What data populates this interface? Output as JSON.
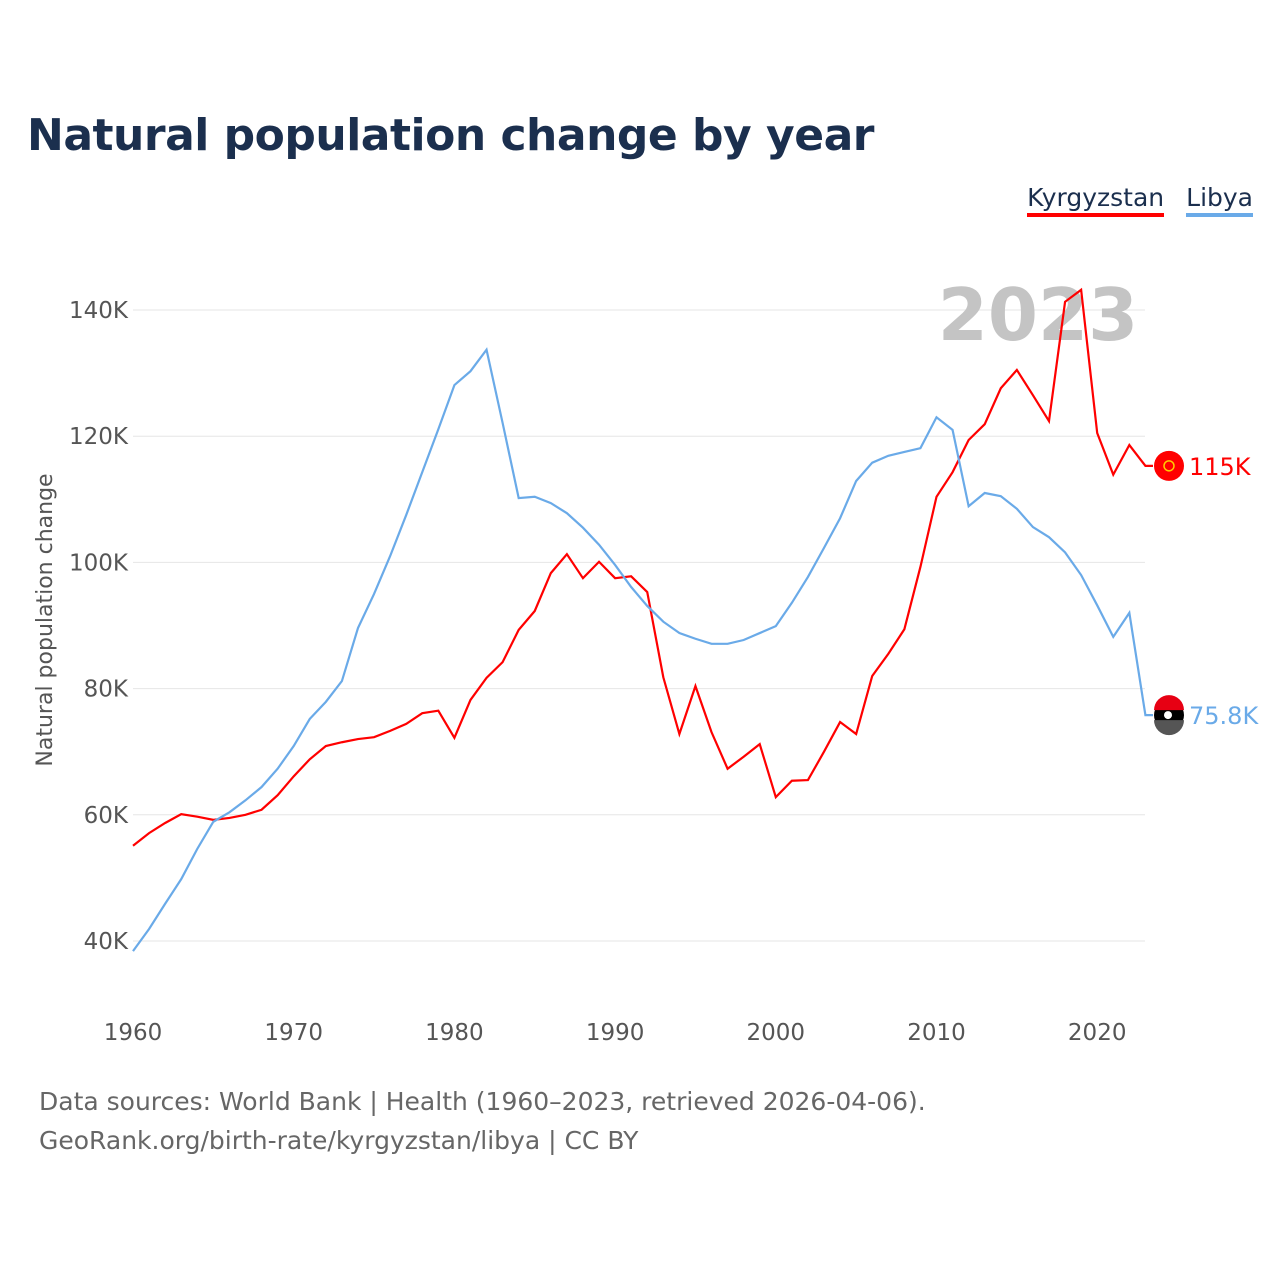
{
  "title": "Natural population change by year",
  "legend": [
    {
      "label": "Kyrgyzstan",
      "color": "#ff0000"
    },
    {
      "label": "Libya",
      "color": "#6aaae8"
    }
  ],
  "sources": [
    "Data sources: World Bank | Health (1960–2023, retrieved 2026-04-06).",
    "GeoRank.org/birth-rate/kyrgyzstan/libya | CC BY"
  ],
  "chart_data": {
    "type": "line",
    "title": "Natural population change by year",
    "xlabel": "",
    "ylabel": "Natural population change",
    "year_label": "2023",
    "xlim": [
      1960,
      2023
    ],
    "ylim": [
      30000,
      145000
    ],
    "x_ticks": [
      "1960",
      "1970",
      "1980",
      "1990",
      "2000",
      "2010",
      "2020"
    ],
    "y_ticks": [
      {
        "v": 40000,
        "label": "40K"
      },
      {
        "v": 60000,
        "label": "60K"
      },
      {
        "v": 80000,
        "label": "80K"
      },
      {
        "v": 100000,
        "label": "100K"
      },
      {
        "v": 120000,
        "label": "120K"
      },
      {
        "v": 140000,
        "label": "140K"
      }
    ],
    "x": [
      1960,
      1961,
      1962,
      1963,
      1964,
      1965,
      1966,
      1967,
      1968,
      1969,
      1970,
      1971,
      1972,
      1973,
      1974,
      1975,
      1976,
      1977,
      1978,
      1979,
      1980,
      1981,
      1982,
      1983,
      1984,
      1985,
      1986,
      1987,
      1988,
      1989,
      1990,
      1991,
      1992,
      1993,
      1994,
      1995,
      1996,
      1997,
      1998,
      1999,
      2000,
      2001,
      2002,
      2003,
      2004,
      2005,
      2006,
      2007,
      2008,
      2009,
      2010,
      2011,
      2012,
      2013,
      2014,
      2015,
      2016,
      2017,
      2018,
      2019,
      2020,
      2021,
      2022,
      2023
    ],
    "series": [
      {
        "name": "Kyrgyzstan",
        "color": "#ff0000",
        "end_label": "115K",
        "values": [
          55100,
          57100,
          58700,
          60100,
          59700,
          59200,
          59500,
          60000,
          60800,
          63100,
          66100,
          68800,
          70900,
          71500,
          72000,
          72300,
          73300,
          74400,
          76100,
          76500,
          72200,
          78200,
          81700,
          84200,
          89300,
          92300,
          98300,
          101300,
          97500,
          100100,
          97500,
          97800,
          95300,
          81800,
          72800,
          80400,
          73100,
          67300,
          69200,
          71200,
          62800,
          65400,
          65500,
          70000,
          74700,
          72800,
          82000,
          85500,
          89400,
          99300,
          110400,
          114300,
          119400,
          121900,
          127600,
          130500,
          126500,
          122400,
          141300,
          143200,
          120500,
          113900,
          118600,
          115300
        ]
      },
      {
        "name": "Libya",
        "color": "#6aaae8",
        "end_label": "75.8K",
        "values": [
          38400,
          41900,
          45900,
          49800,
          54600,
          58900,
          60400,
          62300,
          64400,
          67300,
          70900,
          75200,
          77900,
          81200,
          89600,
          95000,
          101000,
          107500,
          114300,
          121100,
          128100,
          130300,
          133700,
          122100,
          110200,
          110400,
          109400,
          107800,
          105500,
          102800,
          99600,
          96100,
          93100,
          90600,
          88800,
          87900,
          87100,
          87100,
          87700,
          88800,
          89900,
          93600,
          97700,
          102300,
          107000,
          112900,
          115800,
          116900,
          117500,
          118100,
          123000,
          121000,
          108900,
          111000,
          110500,
          108500,
          105600,
          104000,
          101600,
          98000,
          93200,
          88200,
          92000,
          75800
        ]
      }
    ]
  }
}
